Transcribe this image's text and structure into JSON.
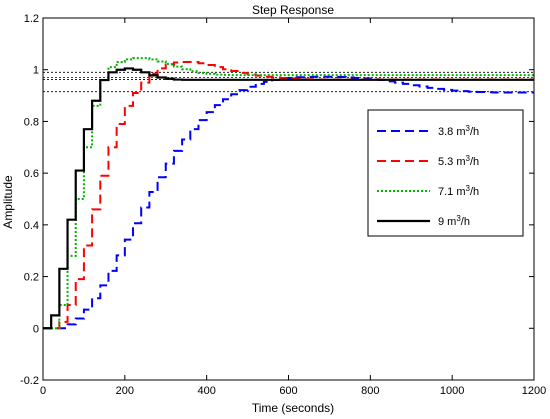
{
  "chart_data": {
    "type": "line",
    "title": "Step Response",
    "xlabel": "Time (seconds)",
    "ylabel": "Amplitude",
    "xlim": [
      0,
      1200
    ],
    "ylim": [
      -0.2,
      1.2
    ],
    "xticks": [
      0,
      200,
      400,
      600,
      800,
      1000,
      1200
    ],
    "xtick_labels": [
      "0",
      "200",
      "400",
      "600",
      "800",
      "1000",
      "1200"
    ],
    "yticks": [
      -0.2,
      0,
      0.2,
      0.4,
      0.6,
      0.8,
      1,
      1.2
    ],
    "ytick_labels": [
      "-0.2",
      "0",
      "0.2",
      "0.4",
      "0.6",
      "0.8",
      "1",
      "1.2"
    ],
    "grid": false,
    "legend_position": "right",
    "reference_lines": [
      0.99,
      0.97,
      0.962,
      0.915
    ],
    "series": [
      {
        "name": "3.8 m3/h",
        "label_main": "3.8 m",
        "label_sup": "3",
        "label_tail": "/h",
        "color": "#0000ff",
        "dash": "9,5",
        "width": 2,
        "x": [
          0,
          20,
          40,
          60,
          80,
          100,
          120,
          140,
          160,
          180,
          200,
          220,
          240,
          260,
          280,
          300,
          320,
          340,
          360,
          380,
          400,
          420,
          440,
          460,
          480,
          500,
          520,
          540,
          560,
          580,
          600,
          620,
          640,
          660,
          680,
          700,
          720,
          740,
          760,
          780,
          800,
          820,
          840,
          860,
          880,
          900,
          920,
          940,
          960,
          980,
          1000,
          1020,
          1040,
          1060,
          1080,
          1100,
          1120,
          1140,
          1160,
          1180,
          1200
        ],
        "y": [
          0,
          0,
          0,
          0.015,
          0.038,
          0.072,
          0.116,
          0.166,
          0.222,
          0.282,
          0.343,
          0.406,
          0.467,
          0.527,
          0.584,
          0.637,
          0.686,
          0.73,
          0.77,
          0.805,
          0.836,
          0.863,
          0.886,
          0.905,
          0.921,
          0.934,
          0.945,
          0.953,
          0.96,
          0.965,
          0.968,
          0.971,
          0.972,
          0.973,
          0.973,
          0.973,
          0.972,
          0.97,
          0.968,
          0.966,
          0.963,
          0.96,
          0.955,
          0.95,
          0.945,
          0.94,
          0.935,
          0.93,
          0.926,
          0.922,
          0.919,
          0.917,
          0.915,
          0.914,
          0.913,
          0.912,
          0.912,
          0.912,
          0.912,
          0.912,
          0.912
        ]
      },
      {
        "name": "5.3 m3/h",
        "label_main": "5.3 m",
        "label_sup": "3",
        "label_tail": "/h",
        "color": "#ff0000",
        "dash": "9,5",
        "width": 2,
        "x": [
          0,
          20,
          40,
          60,
          80,
          100,
          120,
          140,
          160,
          180,
          200,
          220,
          240,
          260,
          280,
          300,
          320,
          340,
          360,
          380,
          400,
          420,
          440,
          460,
          480,
          500,
          520,
          540,
          560,
          580,
          600,
          620,
          640,
          660,
          680,
          700,
          720,
          740,
          760,
          780,
          800,
          820,
          840,
          860,
          880,
          900,
          920,
          940,
          960,
          980,
          1000,
          1020,
          1040,
          1060,
          1080,
          1100,
          1120,
          1140,
          1160,
          1180,
          1200
        ],
        "y": [
          0,
          0,
          0.025,
          0.09,
          0.19,
          0.32,
          0.46,
          0.59,
          0.7,
          0.79,
          0.86,
          0.91,
          0.95,
          0.985,
          1.005,
          1.02,
          1.028,
          1.03,
          1.03,
          1.025,
          1.018,
          1.01,
          1.002,
          0.995,
          0.988,
          0.982,
          0.977,
          0.973,
          0.97,
          0.968,
          0.966,
          0.964,
          0.963,
          0.962,
          0.962,
          0.962,
          0.962,
          0.962,
          0.962,
          0.962,
          0.962,
          0.962,
          0.962,
          0.962,
          0.962,
          0.962,
          0.962,
          0.962,
          0.962,
          0.962,
          0.962,
          0.962,
          0.962,
          0.962,
          0.962,
          0.962,
          0.962,
          0.962,
          0.962,
          0.962,
          0.962
        ]
      },
      {
        "name": "7.1 m3/h",
        "label_main": "7.1 m",
        "label_sup": "3",
        "label_tail": "/h",
        "color": "#00b400",
        "dash": "2,2",
        "width": 2,
        "x": [
          0,
          20,
          40,
          60,
          80,
          100,
          120,
          140,
          160,
          180,
          200,
          220,
          240,
          260,
          280,
          300,
          320,
          340,
          360,
          380,
          400,
          420,
          440,
          460,
          480,
          500,
          520,
          540,
          560,
          580,
          600,
          620,
          640,
          660,
          680,
          700,
          720,
          740,
          760,
          780,
          800,
          820,
          840,
          860,
          880,
          900,
          920,
          940,
          960,
          980,
          1000,
          1020,
          1040,
          1060,
          1080,
          1100,
          1120,
          1140,
          1160,
          1180,
          1200
        ],
        "y": [
          0,
          0,
          0.09,
          0.28,
          0.5,
          0.7,
          0.86,
          0.96,
          1.01,
          1.03,
          1.04,
          1.045,
          1.045,
          1.04,
          1.032,
          1.022,
          1.012,
          1.002,
          0.994,
          0.988,
          0.984,
          0.981,
          0.98,
          0.979,
          0.979,
          0.979,
          0.979,
          0.979,
          0.979,
          0.979,
          0.979,
          0.979,
          0.979,
          0.979,
          0.979,
          0.979,
          0.979,
          0.979,
          0.979,
          0.979,
          0.979,
          0.979,
          0.979,
          0.979,
          0.979,
          0.979,
          0.979,
          0.979,
          0.979,
          0.979,
          0.979,
          0.979,
          0.979,
          0.979,
          0.979,
          0.979,
          0.979,
          0.979,
          0.979,
          0.979,
          0.979
        ]
      },
      {
        "name": "9 m3/h",
        "label_main": "9 m",
        "label_sup": "3",
        "label_tail": "/h",
        "color": "#000000",
        "dash": "",
        "width": 2.2,
        "x": [
          0,
          20,
          40,
          60,
          80,
          100,
          120,
          140,
          160,
          180,
          200,
          220,
          240,
          260,
          280,
          300,
          320,
          340,
          360,
          380,
          400,
          420,
          440,
          460,
          480,
          500,
          520,
          540,
          560,
          580,
          600,
          620,
          640,
          660,
          680,
          700,
          720,
          740,
          760,
          780,
          800,
          820,
          840,
          860,
          880,
          900,
          920,
          940,
          960,
          980,
          1000,
          1020,
          1040,
          1060,
          1080,
          1100,
          1120,
          1140,
          1160,
          1180,
          1200
        ],
        "y": [
          0,
          0.05,
          0.23,
          0.42,
          0.61,
          0.77,
          0.88,
          0.96,
          0.99,
          1.0,
          1.005,
          1.0,
          0.99,
          0.978,
          0.97,
          0.965,
          0.962,
          0.961,
          0.961,
          0.961,
          0.961,
          0.961,
          0.961,
          0.961,
          0.961,
          0.961,
          0.961,
          0.961,
          0.961,
          0.961,
          0.961,
          0.961,
          0.961,
          0.961,
          0.961,
          0.961,
          0.961,
          0.961,
          0.961,
          0.961,
          0.961,
          0.961,
          0.961,
          0.961,
          0.961,
          0.961,
          0.961,
          0.961,
          0.961,
          0.961,
          0.961,
          0.961,
          0.961,
          0.961,
          0.961,
          0.961,
          0.961,
          0.961,
          0.961,
          0.961,
          0.961
        ]
      }
    ]
  }
}
